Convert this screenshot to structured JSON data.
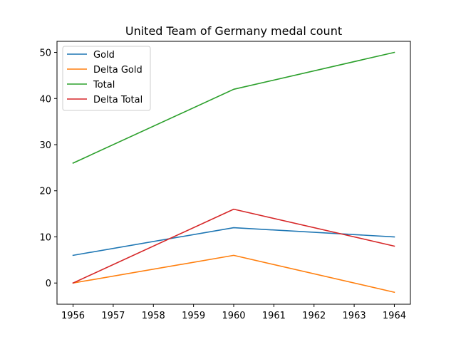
{
  "chart_data": {
    "type": "line",
    "title": "United Team of Germany medal count",
    "xlabel": "",
    "ylabel": "",
    "x": [
      1956,
      1960,
      1964
    ],
    "xticks": [
      1956,
      1957,
      1958,
      1959,
      1960,
      1961,
      1962,
      1963,
      1964
    ],
    "yticks": [
      0,
      10,
      20,
      30,
      40,
      50
    ],
    "xlim": [
      1955.6,
      1964.4
    ],
    "ylim": [
      -4.6,
      52.4
    ],
    "grid": false,
    "legend_position": "top-left",
    "series": [
      {
        "name": "Gold",
        "values": [
          6,
          12,
          10
        ],
        "color": "#1f77b4"
      },
      {
        "name": "Delta Gold",
        "values": [
          0,
          6,
          -2
        ],
        "color": "#ff7f0e"
      },
      {
        "name": "Total",
        "values": [
          26,
          42,
          50
        ],
        "color": "#2ca02c"
      },
      {
        "name": "Delta Total",
        "values": [
          0,
          16,
          8
        ],
        "color": "#d62728"
      }
    ]
  }
}
